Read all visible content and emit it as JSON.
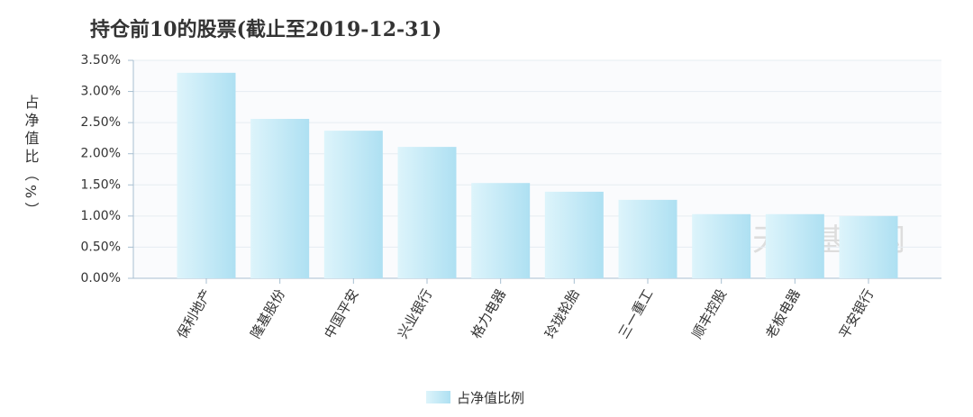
{
  "chart_data": {
    "type": "bar",
    "title": "持仓前10的股票(截止至2019-12-31)",
    "y_label": "占净值比（%）",
    "watermark": "天天基金网",
    "categories": [
      "保利地产",
      "隆基股份",
      "中国平安",
      "兴业银行",
      "格力电器",
      "玲珑轮胎",
      "三一重工",
      "顺丰控股",
      "老板电器",
      "平安银行"
    ],
    "series": [
      {
        "name": "占净值比例",
        "color": "#b4e3f3",
        "values": [
          3.3,
          2.56,
          2.37,
          2.11,
          1.53,
          1.39,
          1.26,
          1.03,
          1.03,
          1.0
        ]
      }
    ],
    "ylim": [
      0,
      3.5
    ],
    "yticks": [
      {
        "value": 0,
        "label": "0.00%"
      },
      {
        "value": 0.5,
        "label": "0.50%"
      },
      {
        "value": 1,
        "label": "1.00%"
      },
      {
        "value": 1.5,
        "label": "1.50%"
      },
      {
        "value": 2,
        "label": "2.00%"
      },
      {
        "value": 2.5,
        "label": "2.50%"
      },
      {
        "value": 3,
        "label": "3.00%"
      },
      {
        "value": 3.5,
        "label": "3.50%"
      }
    ],
    "grid": true
  }
}
